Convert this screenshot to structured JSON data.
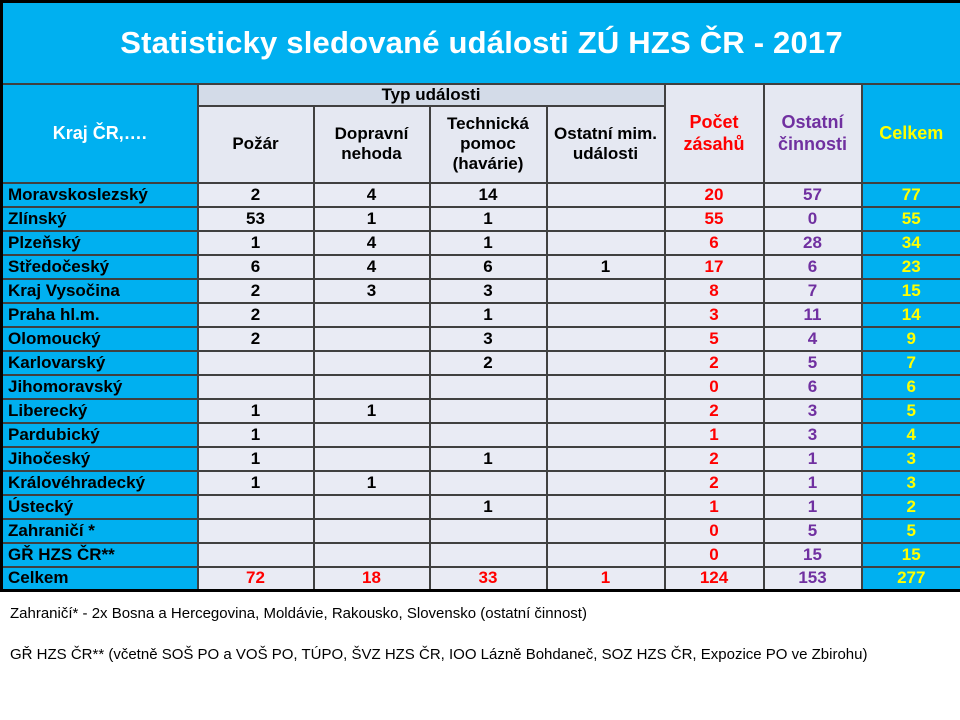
{
  "title": "Statisticky sledované události ZÚ HZS ČR - 2017",
  "colors": {
    "cyan": "#00B0F0",
    "grid": "#404040",
    "band_bg": "#D3DBE8",
    "header_bg": "#E5E8F2",
    "cell_bg": "#E9EBF4",
    "red": "#FF0000",
    "purple": "#7030A0",
    "yellow": "#FFFF00",
    "title_text": "#FFFFFF",
    "black": "#000000"
  },
  "table": {
    "corner_header": "Kraj ČR,….",
    "group_header": "Typ události",
    "event_columns": [
      "Požár",
      "Dopravní nehoda",
      "Technická pomoc (havárie)",
      "Ostatní mim. události"
    ],
    "summary_columns": [
      "Počet zásahů",
      "Ostatní činnosti",
      "Celkem"
    ],
    "rows": [
      {
        "label": "Moravskoslezský",
        "values": [
          "2",
          "4",
          "14",
          "",
          "20",
          "57",
          "77"
        ]
      },
      {
        "label": "Zlínský",
        "values": [
          "53",
          "1",
          "1",
          "",
          "55",
          "0",
          "55"
        ]
      },
      {
        "label": "Plzeňský",
        "values": [
          "1",
          "4",
          "1",
          "",
          "6",
          "28",
          "34"
        ]
      },
      {
        "label": "Středočeský",
        "values": [
          "6",
          "4",
          "6",
          "1",
          "17",
          "6",
          "23"
        ]
      },
      {
        "label": "Kraj Vysočina",
        "values": [
          "2",
          "3",
          "3",
          "",
          "8",
          "7",
          "15"
        ]
      },
      {
        "label": "Praha hl.m.",
        "values": [
          "2",
          "",
          "1",
          "",
          "3",
          "11",
          "14"
        ]
      },
      {
        "label": "Olomoucký",
        "values": [
          "2",
          "",
          "3",
          "",
          "5",
          "4",
          "9"
        ]
      },
      {
        "label": "Karlovarský",
        "values": [
          "",
          "",
          "2",
          "",
          "2",
          "5",
          "7"
        ]
      },
      {
        "label": "Jihomoravský",
        "values": [
          "",
          "",
          "",
          "",
          "0",
          "6",
          "6"
        ]
      },
      {
        "label": "Liberecký",
        "values": [
          "1",
          "1",
          "",
          "",
          "2",
          "3",
          "5"
        ]
      },
      {
        "label": "Pardubický",
        "values": [
          "1",
          "",
          "",
          "",
          "1",
          "3",
          "4"
        ]
      },
      {
        "label": "Jihočeský",
        "values": [
          "1",
          "",
          "1",
          "",
          "2",
          "1",
          "3"
        ]
      },
      {
        "label": "Královéhradecký",
        "values": [
          "1",
          "1",
          "",
          "",
          "2",
          "1",
          "3"
        ]
      },
      {
        "label": "Ústecký",
        "values": [
          "",
          "",
          "1",
          "",
          "1",
          "1",
          "2"
        ]
      },
      {
        "label": "Zahraničí *",
        "values": [
          "",
          "",
          "",
          "",
          "0",
          "5",
          "5"
        ]
      },
      {
        "label": "GŘ HZS ČR**",
        "values": [
          "",
          "",
          "",
          "",
          "0",
          "15",
          "15"
        ]
      },
      {
        "label": "Celkem",
        "total": true,
        "values": [
          "72",
          "18",
          "33",
          "1",
          "124",
          "153",
          "277"
        ]
      }
    ]
  },
  "footnotes": [
    "Zahraničí* - 2x Bosna a Hercegovina, Moldávie, Rakousko, Slovensko (ostatní činnost)",
    "GŘ HZS ČR** (včetně SOŠ PO a VOŠ PO, TÚPO, ŠVZ HZS ČR, IOO Lázně Bohdaneč, SOZ HZS ČR, Expozice PO ve Zbirohu)"
  ]
}
